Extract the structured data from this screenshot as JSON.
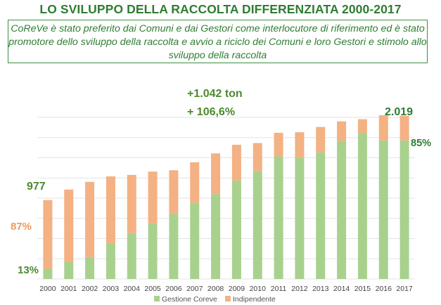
{
  "title": "LO SVILUPPO DELLA RACCOLTA DIFFERENZIATA 2000-2017",
  "subtitle": "CoReVe è stato preferito dai Comuni e dai Gestori come interlocutore di riferimento ed è stato promotore dello sviluppo della raccolta e avvio a riciclo dei Comuni e loro Gestori e stimolo allo sviluppo della raccolta",
  "colors": {
    "gestione": "#a9d18e",
    "indipendente": "#f4b183",
    "title_green": "#2e7d32",
    "orange_label": "#ed9a5c"
  },
  "chart_data": {
    "type": "bar",
    "stacked": true,
    "categories": [
      "2000",
      "2001",
      "2002",
      "2003",
      "2004",
      "2005",
      "2006",
      "2007",
      "2008",
      "2009",
      "2010",
      "2011",
      "2012",
      "2013",
      "2014",
      "2015",
      "2016",
      "2017"
    ],
    "series": [
      {
        "name": "Gestione Coreve",
        "values": [
          127,
          209,
          272,
          444,
          568,
          689,
          810,
          945,
          1051,
          1219,
          1338,
          1518,
          1501,
          1568,
          1708,
          1808,
          1716,
          1716
        ]
      },
      {
        "name": "Indipendente",
        "values": [
          850,
          898,
          930,
          826,
          720,
          640,
          536,
          499,
          503,
          442,
          344,
          291,
          315,
          313,
          242,
          169,
          310,
          303
        ]
      }
    ],
    "ylim": [
      0,
      2200
    ],
    "grid": true,
    "legend": "bottom",
    "annotations": {
      "start_total": "977",
      "start_indip_share": "87%",
      "start_coreve_share": "13%",
      "growth_ton": "+1.042 ton",
      "growth_pct": "+ 106,6%",
      "end_total": "2.019",
      "end_coreve_share": "85%"
    }
  }
}
